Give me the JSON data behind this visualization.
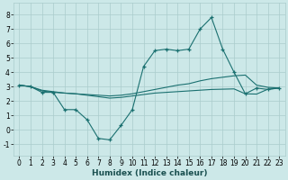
{
  "xlabel": "Humidex (Indice chaleur)",
  "bg_color": "#cce8e8",
  "grid_color": "#aacccc",
  "line_color": "#1a7070",
  "xlim": [
    -0.5,
    23.5
  ],
  "ylim": [
    -1.8,
    8.8
  ],
  "xticks": [
    0,
    1,
    2,
    3,
    4,
    5,
    6,
    7,
    8,
    9,
    10,
    11,
    12,
    13,
    14,
    15,
    16,
    17,
    18,
    19,
    20,
    21,
    22,
    23
  ],
  "yticks": [
    -1,
    0,
    1,
    2,
    3,
    4,
    5,
    6,
    7,
    8
  ],
  "main_x": [
    0,
    1,
    2,
    3,
    4,
    5,
    6,
    7,
    8,
    9,
    10,
    11,
    12,
    13,
    14,
    15,
    16,
    17,
    18,
    19,
    20,
    21,
    22,
    23
  ],
  "main_y": [
    3.1,
    3.0,
    2.6,
    2.6,
    1.4,
    1.4,
    0.7,
    -0.6,
    -0.7,
    0.3,
    1.4,
    4.4,
    5.5,
    5.6,
    5.5,
    5.6,
    7.0,
    7.8,
    5.6,
    4.0,
    2.5,
    2.9,
    2.8,
    2.9
  ],
  "line2_x": [
    0,
    1,
    2,
    3,
    4,
    5,
    6,
    7,
    8,
    9,
    10,
    11,
    12,
    13,
    14,
    15,
    16,
    17,
    18,
    19,
    20,
    21,
    22,
    23
  ],
  "line2_y": [
    3.1,
    3.0,
    2.75,
    2.65,
    2.55,
    2.5,
    2.45,
    2.4,
    2.35,
    2.4,
    2.5,
    2.65,
    2.8,
    2.95,
    3.1,
    3.2,
    3.4,
    3.55,
    3.65,
    3.75,
    3.8,
    3.1,
    2.95,
    2.9
  ],
  "line3_x": [
    0,
    1,
    2,
    3,
    4,
    5,
    6,
    7,
    8,
    9,
    10,
    11,
    12,
    13,
    14,
    15,
    16,
    17,
    18,
    19,
    20,
    21,
    22,
    23
  ],
  "line3_y": [
    3.1,
    3.0,
    2.7,
    2.6,
    2.55,
    2.5,
    2.4,
    2.3,
    2.2,
    2.25,
    2.35,
    2.45,
    2.55,
    2.6,
    2.65,
    2.7,
    2.75,
    2.8,
    2.82,
    2.84,
    2.5,
    2.48,
    2.82,
    2.9
  ],
  "tick_fontsize": 5.5,
  "xlabel_fontsize": 6.5
}
